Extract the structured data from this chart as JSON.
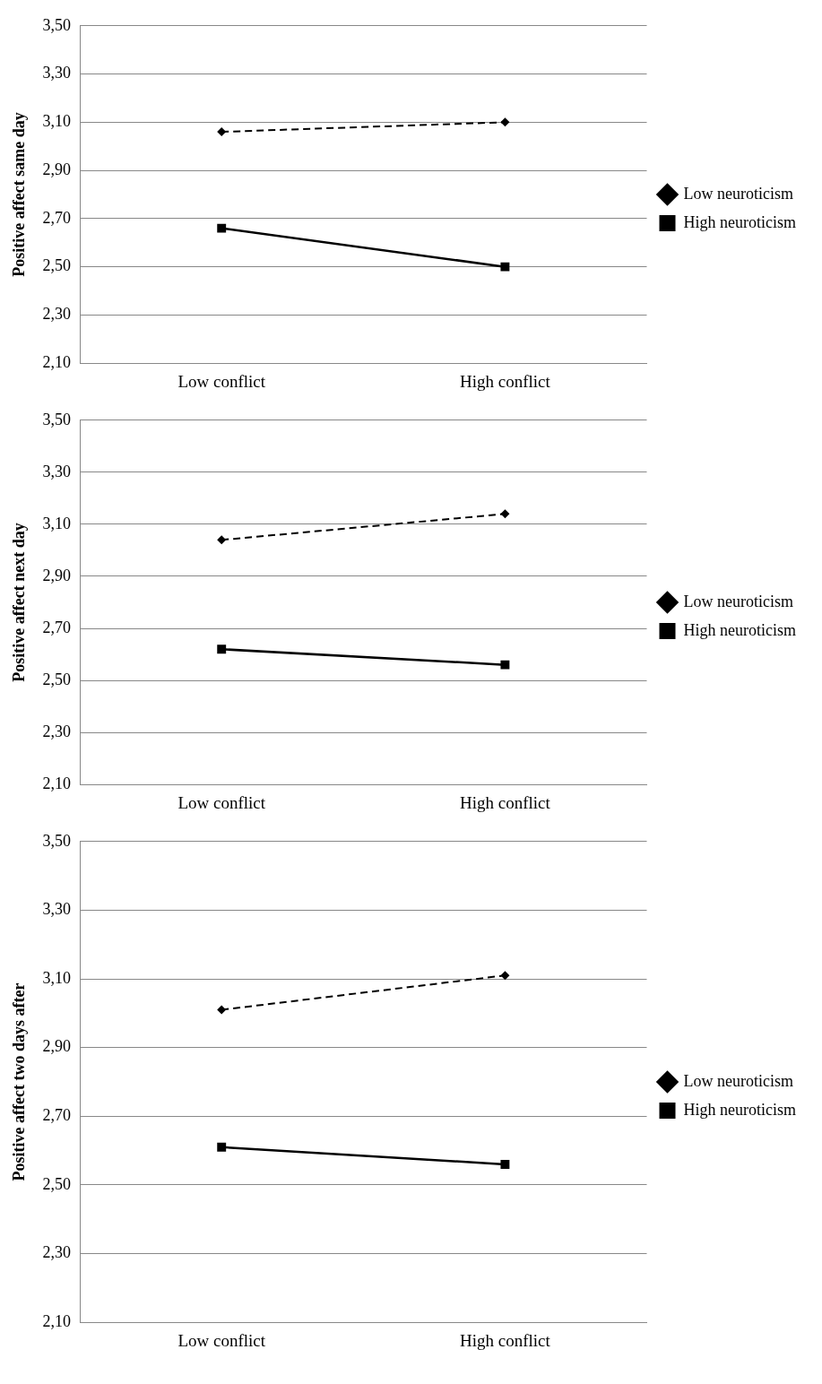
{
  "chart_data": [
    {
      "type": "line",
      "ylabel": "Positive affect same day",
      "categories": [
        "Low conflict",
        "High conflict"
      ],
      "ylim": [
        2.1,
        3.5
      ],
      "yticks": [
        {
          "value": 2.1,
          "label": "2,10"
        },
        {
          "value": 2.3,
          "label": "2,30"
        },
        {
          "value": 2.5,
          "label": "2,50"
        },
        {
          "value": 2.7,
          "label": "2,70"
        },
        {
          "value": 2.9,
          "label": "2,90"
        },
        {
          "value": 3.1,
          "label": "3,10"
        },
        {
          "value": 3.3,
          "label": "3,30"
        },
        {
          "value": 3.5,
          "label": "3,50"
        }
      ],
      "grid": "y",
      "legend": "right",
      "series": [
        {
          "name": "Low neuroticism",
          "color": "#000000",
          "values": [
            3.06,
            3.1
          ],
          "marker": "diamond",
          "line_style": "dashed"
        },
        {
          "name": "High neuroticism",
          "color": "#000000",
          "values": [
            2.66,
            2.5
          ],
          "marker": "square",
          "line_style": "solid"
        }
      ]
    },
    {
      "type": "line",
      "ylabel": "Positive affect next day",
      "categories": [
        "Low conflict",
        "High conflict"
      ],
      "ylim": [
        2.1,
        3.5
      ],
      "yticks": [
        {
          "value": 2.1,
          "label": "2,10"
        },
        {
          "value": 2.3,
          "label": "2,30"
        },
        {
          "value": 2.5,
          "label": "2,50"
        },
        {
          "value": 2.7,
          "label": "2,70"
        },
        {
          "value": 2.9,
          "label": "2,90"
        },
        {
          "value": 3.1,
          "label": "3,10"
        },
        {
          "value": 3.3,
          "label": "3,30"
        },
        {
          "value": 3.5,
          "label": "3,50"
        }
      ],
      "grid": "y",
      "legend": "right",
      "series": [
        {
          "name": "Low neuroticism",
          "color": "#000000",
          "values": [
            3.04,
            3.14
          ],
          "marker": "diamond",
          "line_style": "dashed"
        },
        {
          "name": "High neuroticism",
          "color": "#000000",
          "values": [
            2.62,
            2.56
          ],
          "marker": "square",
          "line_style": "solid"
        }
      ]
    },
    {
      "type": "line",
      "ylabel": "Positive affect two days after",
      "categories": [
        "Low conflict",
        "High conflict"
      ],
      "ylim": [
        2.1,
        3.5
      ],
      "yticks": [
        {
          "value": 2.1,
          "label": "2,10"
        },
        {
          "value": 2.3,
          "label": "2,30"
        },
        {
          "value": 2.5,
          "label": "2,50"
        },
        {
          "value": 2.7,
          "label": "2,70"
        },
        {
          "value": 2.9,
          "label": "2,90"
        },
        {
          "value": 3.1,
          "label": "3,10"
        },
        {
          "value": 3.3,
          "label": "3,30"
        },
        {
          "value": 3.5,
          "label": "3,50"
        }
      ],
      "grid": "y",
      "legend": "right",
      "series": [
        {
          "name": "Low neuroticism",
          "color": "#000000",
          "values": [
            3.01,
            3.11
          ],
          "marker": "diamond",
          "line_style": "dashed"
        },
        {
          "name": "High neuroticism",
          "color": "#000000",
          "values": [
            2.61,
            2.56
          ],
          "marker": "square",
          "line_style": "solid"
        }
      ]
    }
  ]
}
